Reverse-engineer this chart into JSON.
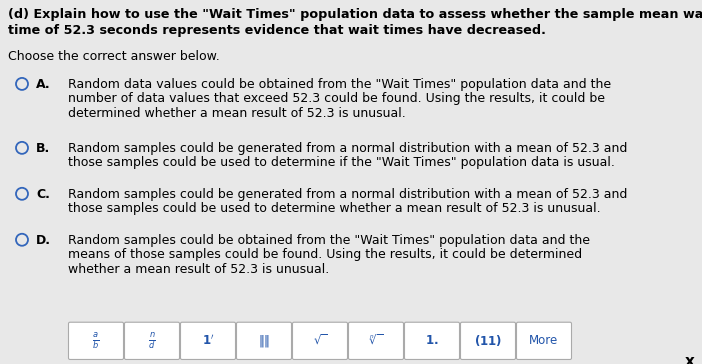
{
  "title_line1": "(d) Explain how to use the \"Wait Times\" population data to assess whether the sample mean wait",
  "title_line2": "time of 52.3 seconds represents evidence that wait times have decreased.",
  "subtitle": "Choose the correct answer below.",
  "options": [
    {
      "letter": "A.",
      "lines": [
        "Random data values could be obtained from the \"Wait Times\" population data and the",
        "number of data values that exceed 52.3 could be found. Using the results, it could be",
        "determined whether a mean result of 52.3 is unusual."
      ]
    },
    {
      "letter": "B.",
      "lines": [
        "Random samples could be generated from a normal distribution with a mean of 52.3 and",
        "those samples could be used to determine if the \"Wait Times\" population data is usual."
      ]
    },
    {
      "letter": "C.",
      "lines": [
        "Random samples could be generated from a normal distribution with a mean of 52.3 and",
        "those samples could be used to determine whether a mean result of 52.3 is unusual."
      ]
    },
    {
      "letter": "D.",
      "lines": [
        "Random samples could be obtained from the \"Wait Times\" population data and the",
        "means of those samples could be found. Using the results, it could be determined",
        "whether a mean result of 52.3 is unusual."
      ]
    }
  ],
  "bg_color": "#e8e8e8",
  "main_bg": "#ffffff",
  "toolbar_bg": "#cccccc",
  "text_color": "#000000",
  "circle_color": "#3366bb",
  "title_fontsize": 9.2,
  "body_fontsize": 9.0,
  "close_x": "x"
}
